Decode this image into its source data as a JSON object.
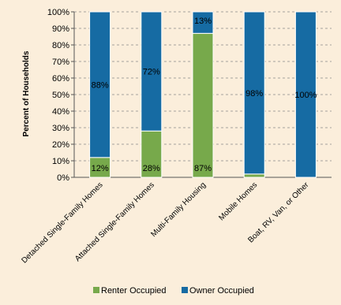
{
  "chart_data": {
    "type": "bar",
    "stacked": true,
    "ylabel": "Percent of Households",
    "xlabel": "",
    "ylim": [
      0,
      100
    ],
    "y_ticks": [
      "0%",
      "10%",
      "20%",
      "30%",
      "40%",
      "50%",
      "60%",
      "70%",
      "80%",
      "90%",
      "100%"
    ],
    "grid": "horizontal dashed",
    "legend_position": "bottom",
    "categories": [
      "Detached Single-Family Homes",
      "Attached Single-Family Homes",
      "Multi-Family Housing",
      "Mobile Homes",
      "Boat, RV, Van, or Other"
    ],
    "series": [
      {
        "name": "Renter Occupied",
        "color": "#77a94b",
        "values": [
          12,
          28,
          87,
          2,
          0
        ],
        "labels": [
          "12%",
          "28%",
          "87%",
          "",
          ""
        ]
      },
      {
        "name": "Owner Occupied",
        "color": "#166ba3",
        "values": [
          88,
          72,
          13,
          98,
          100
        ],
        "labels": [
          "88%",
          "72%",
          "13%",
          "98%",
          "100%"
        ]
      }
    ]
  }
}
